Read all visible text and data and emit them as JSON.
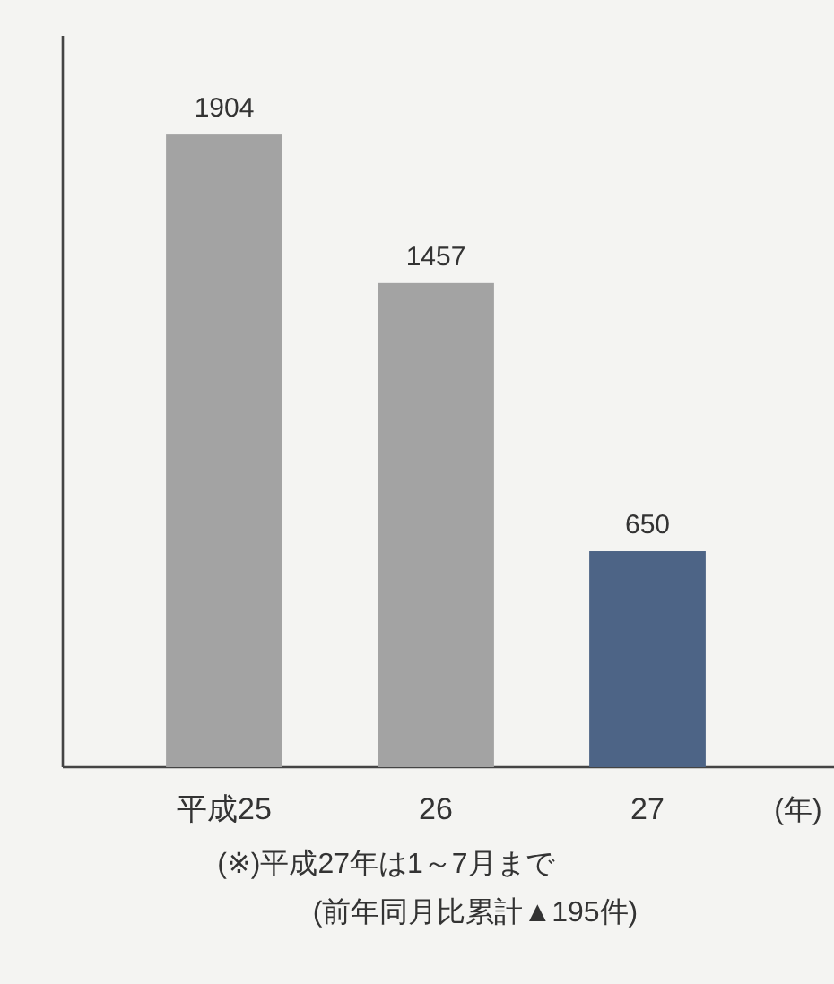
{
  "chart_data": {
    "type": "bar",
    "categories": [
      "平成25",
      "26",
      "27"
    ],
    "values": [
      1904,
      1457,
      650
    ],
    "colors": [
      "#a3a3a3",
      "#a3a3a3",
      "#4d6486"
    ],
    "data_labels": true,
    "xlabel": "(年)",
    "tick_labels": "x",
    "annotations": [
      "(※)平成27年は1～7月まで",
      "(前年同月比累計▲195件)"
    ]
  }
}
